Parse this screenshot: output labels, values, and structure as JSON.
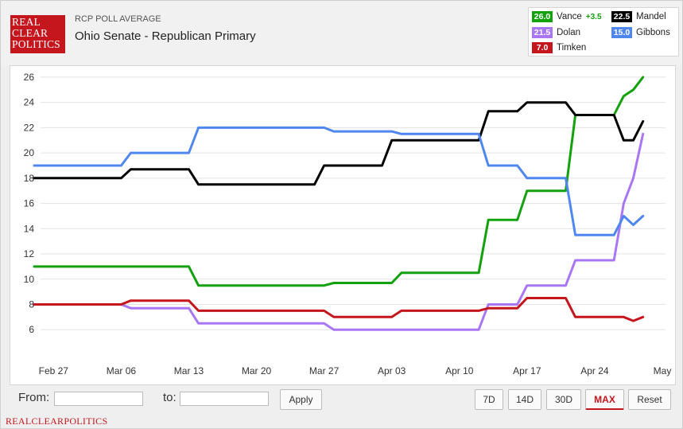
{
  "header": {
    "logo": [
      "REAL",
      "CLEAR",
      "POLITICS"
    ],
    "subtitle": "RCP POLL AVERAGE",
    "title": "Ohio Senate - Republican Primary"
  },
  "legend": [
    {
      "name": "Vance",
      "value": "26.0",
      "diff": "+3.5",
      "color": "#13a10e"
    },
    {
      "name": "Mandel",
      "value": "22.5",
      "diff": "",
      "color": "#000000"
    },
    {
      "name": "Dolan",
      "value": "21.5",
      "diff": "",
      "color": "#a977f5"
    },
    {
      "name": "Gibbons",
      "value": "15.0",
      "diff": "",
      "color": "#4f87f0"
    },
    {
      "name": "Timken",
      "value": "7.0",
      "diff": "",
      "color": "#c4161c"
    }
  ],
  "controls": {
    "from_label": "From:",
    "to_label": "to:",
    "from_value": "",
    "to_value": "",
    "apply_label": "Apply",
    "ranges": [
      "7D",
      "14D",
      "30D",
      "MAX"
    ],
    "active_range": "MAX",
    "reset_label": "Reset"
  },
  "footer": {
    "text": "REALCLEARPOLITICS"
  },
  "chart_data": {
    "type": "line",
    "title": "Ohio Senate - Republican Primary",
    "xlabel": "",
    "ylabel": "",
    "ylim": [
      4.5,
      26.5
    ],
    "yticks": [
      6,
      8,
      10,
      12,
      14,
      16,
      18,
      20,
      22,
      24,
      26
    ],
    "xlim": [
      "2022-02-25",
      "2022-05-01"
    ],
    "xticks": [
      {
        "label": "Feb 27",
        "date": "2022-02-27"
      },
      {
        "label": "Mar 06",
        "date": "2022-03-06"
      },
      {
        "label": "Mar 13",
        "date": "2022-03-13"
      },
      {
        "label": "Mar 20",
        "date": "2022-03-20"
      },
      {
        "label": "Mar 27",
        "date": "2022-03-27"
      },
      {
        "label": "Apr 03",
        "date": "2022-04-03"
      },
      {
        "label": "Apr 10",
        "date": "2022-04-10"
      },
      {
        "label": "Apr 17",
        "date": "2022-04-17"
      },
      {
        "label": "Apr 24",
        "date": "2022-04-24"
      },
      {
        "label": "May",
        "date": "2022-05-01"
      }
    ],
    "grid": true,
    "legend_position": "top-right",
    "series": [
      {
        "name": "Vance",
        "color": "#13a10e",
        "points": [
          [
            "2022-02-25",
            11.0
          ],
          [
            "2022-03-13",
            11.0
          ],
          [
            "2022-03-14",
            9.5
          ],
          [
            "2022-03-27",
            9.5
          ],
          [
            "2022-03-28",
            9.7
          ],
          [
            "2022-04-03",
            9.7
          ],
          [
            "2022-04-04",
            10.5
          ],
          [
            "2022-04-12",
            10.5
          ],
          [
            "2022-04-13",
            14.7
          ],
          [
            "2022-04-16",
            14.7
          ],
          [
            "2022-04-17",
            17.0
          ],
          [
            "2022-04-21",
            17.0
          ],
          [
            "2022-04-22",
            23.0
          ],
          [
            "2022-04-26",
            23.0
          ],
          [
            "2022-04-27",
            24.5
          ],
          [
            "2022-04-28",
            25.0
          ],
          [
            "2022-04-29",
            26.0
          ]
        ]
      },
      {
        "name": "Mandel",
        "color": "#000000",
        "points": [
          [
            "2022-02-25",
            18.0
          ],
          [
            "2022-03-06",
            18.0
          ],
          [
            "2022-03-07",
            18.7
          ],
          [
            "2022-03-13",
            18.7
          ],
          [
            "2022-03-14",
            17.5
          ],
          [
            "2022-03-26",
            17.5
          ],
          [
            "2022-03-27",
            19.0
          ],
          [
            "2022-04-02",
            19.0
          ],
          [
            "2022-04-03",
            21.0
          ],
          [
            "2022-04-12",
            21.0
          ],
          [
            "2022-04-13",
            23.3
          ],
          [
            "2022-04-16",
            23.3
          ],
          [
            "2022-04-17",
            24.0
          ],
          [
            "2022-04-21",
            24.0
          ],
          [
            "2022-04-22",
            23.0
          ],
          [
            "2022-04-26",
            23.0
          ],
          [
            "2022-04-27",
            21.0
          ],
          [
            "2022-04-28",
            21.0
          ],
          [
            "2022-04-29",
            22.5
          ]
        ]
      },
      {
        "name": "Dolan",
        "color": "#a977f5",
        "points": [
          [
            "2022-02-25",
            8.0
          ],
          [
            "2022-03-06",
            8.0
          ],
          [
            "2022-03-07",
            7.7
          ],
          [
            "2022-03-13",
            7.7
          ],
          [
            "2022-03-14",
            6.5
          ],
          [
            "2022-03-27",
            6.5
          ],
          [
            "2022-03-28",
            6.0
          ],
          [
            "2022-04-12",
            6.0
          ],
          [
            "2022-04-13",
            8.0
          ],
          [
            "2022-04-16",
            8.0
          ],
          [
            "2022-04-17",
            9.5
          ],
          [
            "2022-04-21",
            9.5
          ],
          [
            "2022-04-22",
            11.5
          ],
          [
            "2022-04-26",
            11.5
          ],
          [
            "2022-04-27",
            16.0
          ],
          [
            "2022-04-28",
            18.0
          ],
          [
            "2022-04-29",
            21.5
          ]
        ]
      },
      {
        "name": "Gibbons",
        "color": "#4f87f0",
        "points": [
          [
            "2022-02-25",
            19.0
          ],
          [
            "2022-03-06",
            19.0
          ],
          [
            "2022-03-07",
            20.0
          ],
          [
            "2022-03-13",
            20.0
          ],
          [
            "2022-03-14",
            22.0
          ],
          [
            "2022-03-27",
            22.0
          ],
          [
            "2022-03-28",
            21.7
          ],
          [
            "2022-04-03",
            21.7
          ],
          [
            "2022-04-04",
            21.5
          ],
          [
            "2022-04-12",
            21.5
          ],
          [
            "2022-04-13",
            19.0
          ],
          [
            "2022-04-16",
            19.0
          ],
          [
            "2022-04-17",
            18.0
          ],
          [
            "2022-04-21",
            18.0
          ],
          [
            "2022-04-22",
            13.5
          ],
          [
            "2022-04-26",
            13.5
          ],
          [
            "2022-04-27",
            15.0
          ],
          [
            "2022-04-28",
            14.3
          ],
          [
            "2022-04-29",
            15.0
          ]
        ]
      },
      {
        "name": "Timken",
        "color": "#c4161c",
        "points": [
          [
            "2022-02-25",
            8.0
          ],
          [
            "2022-03-06",
            8.0
          ],
          [
            "2022-03-07",
            8.3
          ],
          [
            "2022-03-13",
            8.3
          ],
          [
            "2022-03-14",
            7.5
          ],
          [
            "2022-03-27",
            7.5
          ],
          [
            "2022-03-28",
            7.0
          ],
          [
            "2022-04-03",
            7.0
          ],
          [
            "2022-04-04",
            7.5
          ],
          [
            "2022-04-12",
            7.5
          ],
          [
            "2022-04-13",
            7.7
          ],
          [
            "2022-04-16",
            7.7
          ],
          [
            "2022-04-17",
            8.5
          ],
          [
            "2022-04-21",
            8.5
          ],
          [
            "2022-04-22",
            7.0
          ],
          [
            "2022-04-27",
            7.0
          ],
          [
            "2022-04-28",
            6.7
          ],
          [
            "2022-04-29",
            7.0
          ]
        ]
      }
    ]
  }
}
